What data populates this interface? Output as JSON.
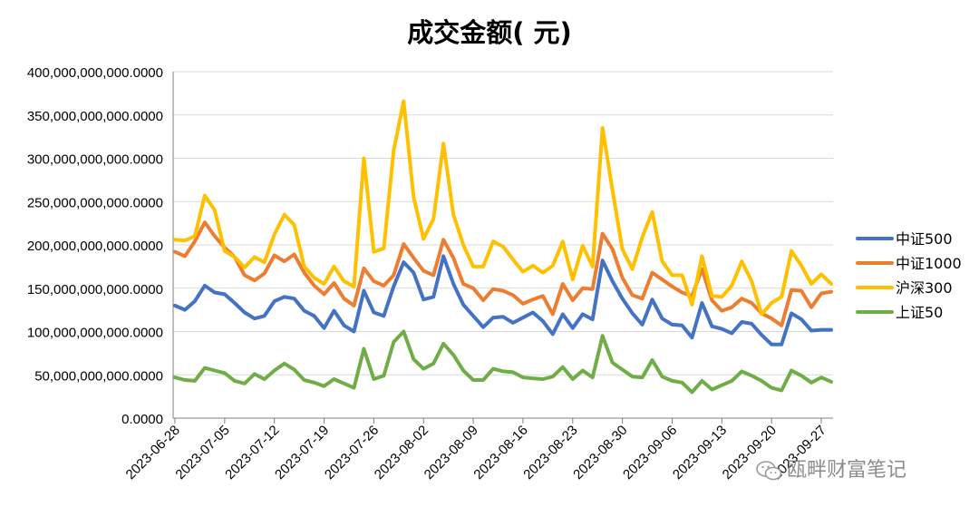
{
  "chart_data": {
    "type": "line",
    "title": "成交金额( 元)",
    "xlabel": "",
    "ylabel": "",
    "ylim": [
      0,
      400000000000
    ],
    "yticks": [
      {
        "value": 0,
        "label": "0.0000"
      },
      {
        "value": 50000000000,
        "label": "50,000,000,000.0000"
      },
      {
        "value": 100000000000,
        "label": "100,000,000,000.0000"
      },
      {
        "value": 150000000000,
        "label": "150,000,000,000.0000"
      },
      {
        "value": 200000000000,
        "label": "200,000,000,000.0000"
      },
      {
        "value": 250000000000,
        "label": "250,000,000,000.0000"
      },
      {
        "value": 300000000000,
        "label": "300,000,000,000.0000"
      },
      {
        "value": 350000000000,
        "label": "350,000,000,000.0000"
      },
      {
        "value": 400000000000,
        "label": "400,000,000,000.0000"
      }
    ],
    "xtick_labels": [
      "2023-06-28",
      "2023-07-05",
      "2023-07-12",
      "2023-07-19",
      "2023-07-26",
      "2023-08-02",
      "2023-08-09",
      "2023-08-16",
      "2023-08-23",
      "2023-08-30",
      "2023-09-06",
      "2023-09-13",
      "2023-09-20",
      "2023-09-27"
    ],
    "grid": "horizontal",
    "legend_position": "right",
    "x": [
      "2023-06-28",
      "2023-06-29",
      "2023-06-30",
      "2023-07-03",
      "2023-07-04",
      "2023-07-05",
      "2023-07-06",
      "2023-07-07",
      "2023-07-10",
      "2023-07-11",
      "2023-07-12",
      "2023-07-13",
      "2023-07-14",
      "2023-07-17",
      "2023-07-18",
      "2023-07-19",
      "2023-07-20",
      "2023-07-21",
      "2023-07-24",
      "2023-07-25",
      "2023-07-26",
      "2023-07-27",
      "2023-07-28",
      "2023-07-31",
      "2023-08-01",
      "2023-08-02",
      "2023-08-03",
      "2023-08-04",
      "2023-08-07",
      "2023-08-08",
      "2023-08-09",
      "2023-08-10",
      "2023-08-11",
      "2023-08-14",
      "2023-08-15",
      "2023-08-16",
      "2023-08-17",
      "2023-08-18",
      "2023-08-21",
      "2023-08-22",
      "2023-08-23",
      "2023-08-24",
      "2023-08-25",
      "2023-08-28",
      "2023-08-29",
      "2023-08-30",
      "2023-08-31",
      "2023-09-01",
      "2023-09-04",
      "2023-09-05",
      "2023-09-06",
      "2023-09-07",
      "2023-09-08",
      "2023-09-11",
      "2023-09-12",
      "2023-09-13",
      "2023-09-14",
      "2023-09-15",
      "2023-09-18",
      "2023-09-19",
      "2023-09-20",
      "2023-09-21",
      "2023-09-22",
      "2023-09-25",
      "2023-09-26",
      "2023-09-27",
      "2023-09-28"
    ],
    "series": [
      {
        "name": "中证500",
        "color": "#4472C4",
        "values": [
          130,
          125,
          135,
          153,
          145,
          143,
          133,
          122,
          115,
          118,
          135,
          140,
          138,
          124,
          118,
          104,
          124,
          107,
          100,
          147,
          122,
          118,
          152,
          180,
          168,
          137,
          140,
          187,
          155,
          131,
          118,
          105,
          116,
          117,
          110,
          116,
          122,
          112,
          97,
          120,
          104,
          120,
          114,
          182,
          158,
          138,
          121,
          108,
          137,
          115,
          108,
          107,
          93,
          133,
          106,
          103,
          98,
          111,
          109,
          96,
          85,
          85,
          121,
          114,
          101,
          102,
          102
        ]
      },
      {
        "name": "中证1000",
        "color": "#ED7D31",
        "values": [
          192,
          187,
          204,
          226,
          210,
          197,
          186,
          165,
          159,
          167,
          188,
          181,
          189,
          168,
          153,
          143,
          156,
          138,
          130,
          173,
          158,
          153,
          165,
          201,
          185,
          170,
          165,
          206,
          185,
          155,
          150,
          136,
          149,
          147,
          142,
          132,
          137,
          141,
          120,
          155,
          136,
          150,
          149,
          213,
          195,
          162,
          142,
          138,
          168,
          160,
          152,
          145,
          141,
          172,
          136,
          124,
          128,
          138,
          133,
          121,
          115,
          107,
          148,
          147,
          128,
          144,
          146
        ]
      },
      {
        "name": "沪深300",
        "color": "#FFC000",
        "values": [
          206,
          205,
          210,
          257,
          240,
          193,
          186,
          174,
          186,
          180,
          212,
          235,
          223,
          175,
          162,
          155,
          175,
          158,
          152,
          300,
          192,
          196,
          309,
          366,
          255,
          207,
          230,
          317,
          235,
          200,
          175,
          175,
          204,
          198,
          183,
          169,
          176,
          168,
          176,
          204,
          160,
          199,
          175,
          335,
          263,
          195,
          172,
          209,
          238,
          181,
          165,
          165,
          131,
          187,
          141,
          140,
          153,
          181,
          158,
          120,
          133,
          140,
          193,
          176,
          155,
          166,
          155
        ]
      },
      {
        "name": "上证50",
        "color": "#70AD47",
        "values": [
          47,
          44,
          43,
          58,
          55,
          52,
          43,
          40,
          51,
          45,
          55,
          63,
          56,
          44,
          41,
          37,
          45,
          40,
          35,
          80,
          45,
          49,
          88,
          100,
          68,
          57,
          63,
          86,
          73,
          55,
          44,
          44,
          57,
          54,
          53,
          47,
          46,
          45,
          48,
          59,
          45,
          55,
          47,
          95,
          64,
          56,
          48,
          47,
          67,
          48,
          43,
          41,
          30,
          43,
          33,
          38,
          43,
          54,
          49,
          43,
          35,
          32,
          55,
          49,
          41,
          47,
          42
        ]
      }
    ]
  },
  "watermark": {
    "text": "瓯畔财富笔记",
    "icon": "wechat-icon"
  }
}
